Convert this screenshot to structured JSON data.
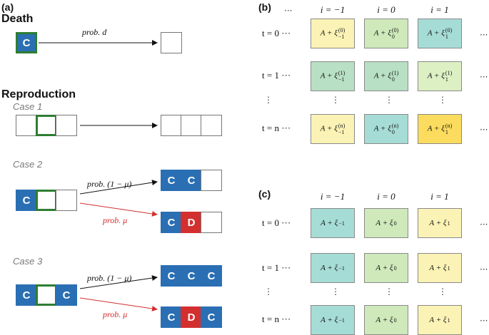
{
  "panel_a": {
    "label": "(a)",
    "death_heading": "Death",
    "reproduction_heading": "Reproduction",
    "case1": "Case 1",
    "case2": "Case 2",
    "case3": "Case 3",
    "coop_letter": "C",
    "defect_letter": "D",
    "prob_d": "prob. d",
    "prob_one_minus_mu": "prob. (1 − μ)",
    "prob_mu": "prob. μ",
    "colors": {
      "coop": "#2a6fb3",
      "defect": "#d32f2f",
      "focus_border": "#2e7d32",
      "red_arrow": "#d32f2f"
    }
  },
  "panel_b": {
    "label": "(b)",
    "col_headers": [
      "i = −1",
      "i = 0",
      "i = 1"
    ],
    "row_labels": [
      "t = 0",
      "t = 1",
      "t = n"
    ],
    "cells": [
      [
        {
          "base": "A + ξ",
          "sub": "−1",
          "sup": "(0)",
          "color": "#fbf3b5"
        },
        {
          "base": "A + ξ",
          "sub": "0",
          "sup": "(0)",
          "color": "#cfe9bb"
        },
        {
          "base": "A + ξ",
          "sub": "1",
          "sup": "(0)",
          "color": "#a6dcd6"
        }
      ],
      [
        {
          "base": "A + ξ",
          "sub": "−1",
          "sup": "(1)",
          "color": "#b8e0c4"
        },
        {
          "base": "A + ξ",
          "sub": "0",
          "sup": "(1)",
          "color": "#b8e0c4"
        },
        {
          "base": "A + ξ",
          "sub": "1",
          "sup": "(1)",
          "color": "#dcf0c4"
        }
      ],
      [
        {
          "base": "A + ξ",
          "sub": "−1",
          "sup": "(n)",
          "color": "#fbf3b5"
        },
        {
          "base": "A + ξ",
          "sub": "0",
          "sup": "(n)",
          "color": "#a6dcd6"
        },
        {
          "base": "A + ξ",
          "sub": "1",
          "sup": "(n)",
          "color": "#fbdc5e"
        }
      ]
    ]
  },
  "panel_c": {
    "label": "(c)",
    "col_headers": [
      "i = −1",
      "i = 0",
      "i = 1"
    ],
    "row_labels": [
      "t = 0",
      "t = 1",
      "t = n"
    ],
    "cells": [
      [
        {
          "base": "A + ξ",
          "sub": "−1",
          "color": "#a6dcd6"
        },
        {
          "base": "A + ξ",
          "sub": "0",
          "color": "#cfe9bb"
        },
        {
          "base": "A + ξ",
          "sub": "1",
          "color": "#fbf3b5"
        }
      ],
      [
        {
          "base": "A + ξ",
          "sub": "−1",
          "color": "#a6dcd6"
        },
        {
          "base": "A + ξ",
          "sub": "0",
          "color": "#cfe9bb"
        },
        {
          "base": "A + ξ",
          "sub": "1",
          "color": "#fbf3b5"
        }
      ],
      [
        {
          "base": "A + ξ",
          "sub": "−1",
          "color": "#a6dcd6"
        },
        {
          "base": "A + ξ",
          "sub": "0",
          "color": "#cfe9bb"
        },
        {
          "base": "A + ξ",
          "sub": "1",
          "color": "#fbf3b5"
        }
      ]
    ]
  },
  "ellipsis": "···",
  "vellipsis": "⋮"
}
